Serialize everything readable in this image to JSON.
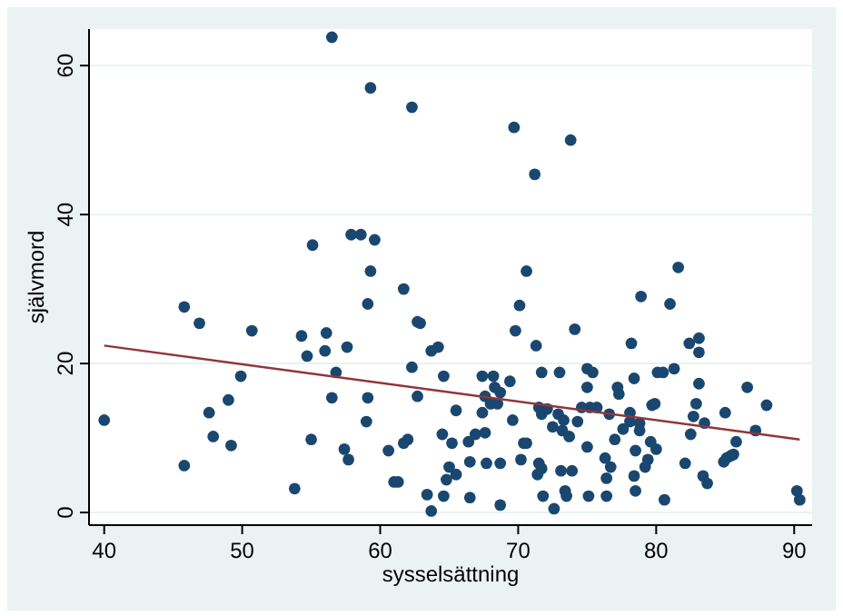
{
  "chart_data": {
    "type": "scatter",
    "xlabel": "sysselsättning",
    "ylabel": "självmord",
    "xlim": [
      38.9,
      91.3
    ],
    "ylim": [
      -1.7,
      64.9
    ],
    "xticks": [
      40,
      50,
      60,
      70,
      80,
      90
    ],
    "yticks": [
      0,
      20,
      40,
      60
    ],
    "grid": "y",
    "series": [
      {
        "marker": "circle",
        "color": "#1a476f",
        "x": [
          56.5,
          59.3,
          62.3,
          55.1,
          57.9,
          58.6,
          59.6,
          59.3,
          61.7,
          59.1,
          45.8,
          69.7,
          73.8,
          71.2,
          70.6,
          81.6,
          78.9,
          81,
          70.1,
          46.9,
          50.7,
          54.3,
          54.7,
          56,
          56.1,
          57.6,
          56.8,
          49.9,
          56.5,
          59.1,
          47.6,
          40,
          49,
          59,
          47.9,
          55,
          49.2,
          57.4,
          57.7,
          60.6,
          61.7,
          62,
          45.8,
          53.8,
          61,
          61.3,
          63.4,
          63.7,
          62.3,
          62.7,
          62.9,
          63.7,
          62.7,
          64.2,
          64.6,
          65.5,
          64.5,
          65.2,
          66.4,
          66.9,
          67.6,
          65,
          65.5,
          64.8,
          66.5,
          64.6,
          66.5,
          68.7,
          67.7,
          68.7,
          67.4,
          68.2,
          68.3,
          67.6,
          68,
          68.5,
          68.7,
          67.4,
          69.4,
          69.6,
          69.8,
          71.3,
          71.7,
          73,
          71.5,
          72.1,
          71.7,
          72.5,
          72.9,
          73.3,
          73.2,
          73.7,
          74.3,
          74.1,
          70.4,
          70.6,
          70.2,
          71.5,
          71.7,
          71.4,
          73.1,
          73.9,
          71.8,
          72.6,
          73.4,
          73.5,
          75,
          75.4,
          74.6,
          75.2,
          75.7,
          75,
          75,
          76.3,
          76.7,
          76.4,
          75.1,
          76.4,
          76.6,
          77,
          77.2,
          77.3,
          78.2,
          78.4,
          78.1,
          78.1,
          77.6,
          78.8,
          78.8,
          79.6,
          78.5,
          79.4,
          79.2,
          78.4,
          78.5,
          79.7,
          79.9,
          80,
          80.1,
          80.5,
          81.3,
          80.6,
          82.4,
          83.1,
          83.1,
          83.1,
          82.9,
          82.7,
          83.5,
          82.5,
          82.1,
          83.4,
          83.7,
          85,
          86.6,
          88,
          87.2,
          85.8,
          85.6,
          85.4,
          85.1,
          84.9,
          90.2,
          90.4
        ],
        "values": [
          63.8,
          57,
          54.4,
          35.9,
          37.3,
          37.3,
          36.6,
          32.4,
          30,
          28,
          27.6,
          51.7,
          50,
          45.4,
          32.4,
          32.9,
          29,
          28,
          27.8,
          25.4,
          24.4,
          23.7,
          21,
          21.7,
          24.1,
          22.2,
          18.8,
          18.3,
          15.4,
          15.4,
          13.4,
          12.4,
          15.1,
          12.2,
          10.2,
          9.8,
          9,
          8.5,
          7.1,
          8.3,
          9.3,
          9.8,
          6.3,
          3.2,
          4.1,
          4.1,
          2.4,
          0.2,
          19.5,
          15.6,
          25.4,
          21.7,
          25.6,
          22.2,
          18.3,
          13.7,
          10.5,
          9.3,
          9.5,
          10.5,
          10.7,
          6.1,
          5.1,
          4.4,
          6.8,
          2.2,
          2,
          1,
          6.6,
          6.6,
          18.3,
          18.3,
          16.8,
          15.6,
          14.6,
          14.6,
          16.1,
          13.4,
          17.6,
          12.4,
          24.4,
          22.4,
          18.8,
          18.8,
          14.1,
          13.9,
          13.2,
          11.5,
          13.2,
          12.4,
          11,
          10.2,
          12.2,
          24.6,
          9.3,
          9.3,
          7.1,
          6.6,
          5.9,
          5.1,
          5.6,
          5.6,
          2.2,
          0.5,
          2.9,
          2.2,
          19.3,
          18.8,
          14.1,
          14.1,
          14.1,
          16.8,
          8.8,
          7.3,
          6.1,
          4.6,
          2.2,
          2.2,
          13.2,
          9.8,
          16.8,
          15.9,
          22.7,
          18,
          13.4,
          12.2,
          11.2,
          12,
          11,
          9.5,
          8.3,
          7.1,
          6.1,
          4.9,
          2.9,
          14.4,
          14.6,
          8.5,
          18.8,
          18.8,
          19.3,
          1.7,
          22.7,
          23.4,
          21.5,
          17.3,
          14.6,
          12.9,
          12,
          10.5,
          6.6,
          4.9,
          3.9,
          13.4,
          16.8,
          14.4,
          11,
          9.5,
          7.8,
          7.6,
          7.3,
          6.8,
          2.9,
          1.7
        ]
      },
      {
        "type": "line",
        "color": "#90353b",
        "x": [
          40,
          90.4
        ],
        "values": [
          22.4,
          9.8
        ]
      }
    ]
  }
}
